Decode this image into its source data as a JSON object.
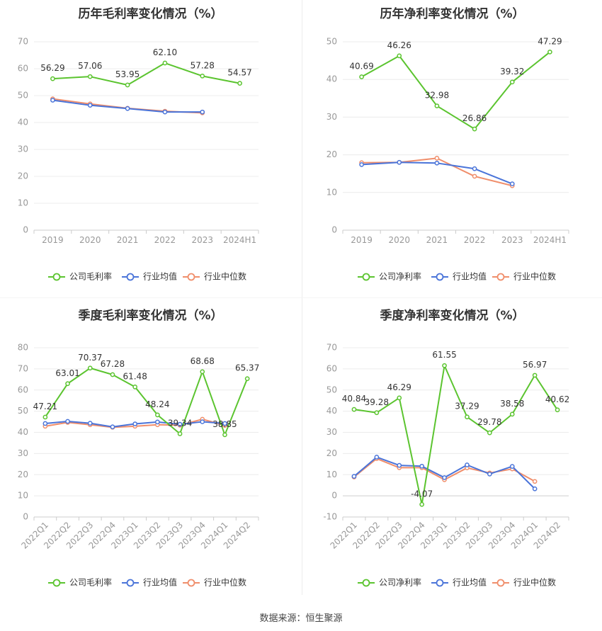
{
  "footer": "数据来源：恒生聚源",
  "colors": {
    "company": "#5bc42f",
    "industry_avg": "#4a74d9",
    "industry_median": "#f08e6b"
  },
  "chart_data": [
    {
      "type": "line",
      "title": "历年毛利率变化情况（%）",
      "categories": [
        "2019",
        "2020",
        "2021",
        "2022",
        "2023",
        "2024H1"
      ],
      "ylim": [
        0,
        70
      ],
      "yticks": [
        0,
        10,
        20,
        30,
        40,
        50,
        60,
        70
      ],
      "grid": true,
      "legend_position": "bottom",
      "rotate_x_labels": false,
      "series": [
        {
          "name": "公司毛利率",
          "values": [
            56.29,
            57.06,
            53.95,
            62.1,
            57.28,
            54.57
          ],
          "labels": [
            "56.29",
            "57.06",
            "53.95",
            "62.10",
            "57.28",
            "54.57"
          ]
        },
        {
          "name": "行业均值",
          "values": [
            48.3,
            46.4,
            45.2,
            43.9,
            43.9,
            null
          ]
        },
        {
          "name": "行业中位数",
          "values": [
            48.8,
            46.9,
            45.3,
            44.2,
            43.6,
            null
          ]
        }
      ]
    },
    {
      "type": "line",
      "title": "历年净利率变化情况（%）",
      "categories": [
        "2019",
        "2020",
        "2021",
        "2022",
        "2023",
        "2024H1"
      ],
      "ylim": [
        0,
        50
      ],
      "yticks": [
        0,
        10,
        20,
        30,
        40,
        50
      ],
      "grid": true,
      "legend_position": "bottom",
      "rotate_x_labels": false,
      "series": [
        {
          "name": "公司净利率",
          "values": [
            40.69,
            46.26,
            32.98,
            26.86,
            39.32,
            47.29
          ],
          "labels": [
            "40.69",
            "46.26",
            "32.98",
            "26.86",
            "39.32",
            "47.29"
          ]
        },
        {
          "name": "行业均值",
          "values": [
            17.4,
            18.0,
            17.8,
            16.3,
            12.3,
            null
          ]
        },
        {
          "name": "行业中位数",
          "values": [
            17.9,
            18.0,
            19.1,
            14.3,
            11.8,
            null
          ]
        }
      ]
    },
    {
      "type": "line",
      "title": "季度毛利率变化情况（%）",
      "categories": [
        "2022Q1",
        "2022Q2",
        "2022Q3",
        "2022Q4",
        "2023Q1",
        "2023Q2",
        "2023Q3",
        "2023Q4",
        "2024Q1",
        "2024Q2"
      ],
      "ylim": [
        0,
        80
      ],
      "yticks": [
        0,
        10,
        20,
        30,
        40,
        50,
        60,
        70,
        80
      ],
      "grid": true,
      "legend_position": "bottom",
      "rotate_x_labels": true,
      "series": [
        {
          "name": "公司毛利率",
          "values": [
            47.21,
            63.01,
            70.37,
            67.28,
            61.48,
            48.24,
            39.34,
            68.68,
            38.85,
            65.37
          ],
          "labels": [
            "47.21",
            "63.01",
            "70.37",
            "67.28",
            "61.48",
            "48.24",
            "39.34",
            "68.68",
            "38.85",
            "65.37"
          ]
        },
        {
          "name": "行业均值",
          "values": [
            44.2,
            45.2,
            44.3,
            42.6,
            44.0,
            44.9,
            43.8,
            45.0,
            44.2,
            null
          ]
        },
        {
          "name": "行业中位数",
          "values": [
            42.9,
            44.7,
            43.6,
            42.4,
            42.9,
            43.6,
            43.4,
            46.2,
            43.3,
            null
          ]
        }
      ]
    },
    {
      "type": "line",
      "title": "季度净利率变化情况（%）",
      "categories": [
        "2022Q1",
        "2022Q2",
        "2022Q3",
        "2022Q4",
        "2023Q1",
        "2023Q2",
        "2023Q3",
        "2023Q4",
        "2024Q1",
        "2024Q2"
      ],
      "ylim": [
        -10,
        70
      ],
      "yticks": [
        -10,
        0,
        10,
        20,
        30,
        40,
        50,
        60,
        70
      ],
      "grid": true,
      "legend_position": "bottom",
      "rotate_x_labels": true,
      "series": [
        {
          "name": "公司净利率",
          "values": [
            40.84,
            39.28,
            46.29,
            -4.07,
            61.55,
            37.29,
            29.78,
            38.58,
            56.97,
            40.62
          ],
          "labels": [
            "40.84",
            "39.28",
            "46.29",
            "-4.07",
            "61.55",
            "37.29",
            "29.78",
            "38.58",
            "56.97",
            "40.62"
          ]
        },
        {
          "name": "行业均值",
          "values": [
            9.2,
            18.3,
            14.4,
            14.0,
            8.6,
            14.6,
            10.3,
            13.9,
            3.3,
            null
          ]
        },
        {
          "name": "行业中位数",
          "values": [
            8.9,
            17.6,
            13.3,
            13.3,
            7.6,
            13.2,
            10.8,
            12.7,
            6.8,
            null
          ]
        }
      ]
    }
  ]
}
